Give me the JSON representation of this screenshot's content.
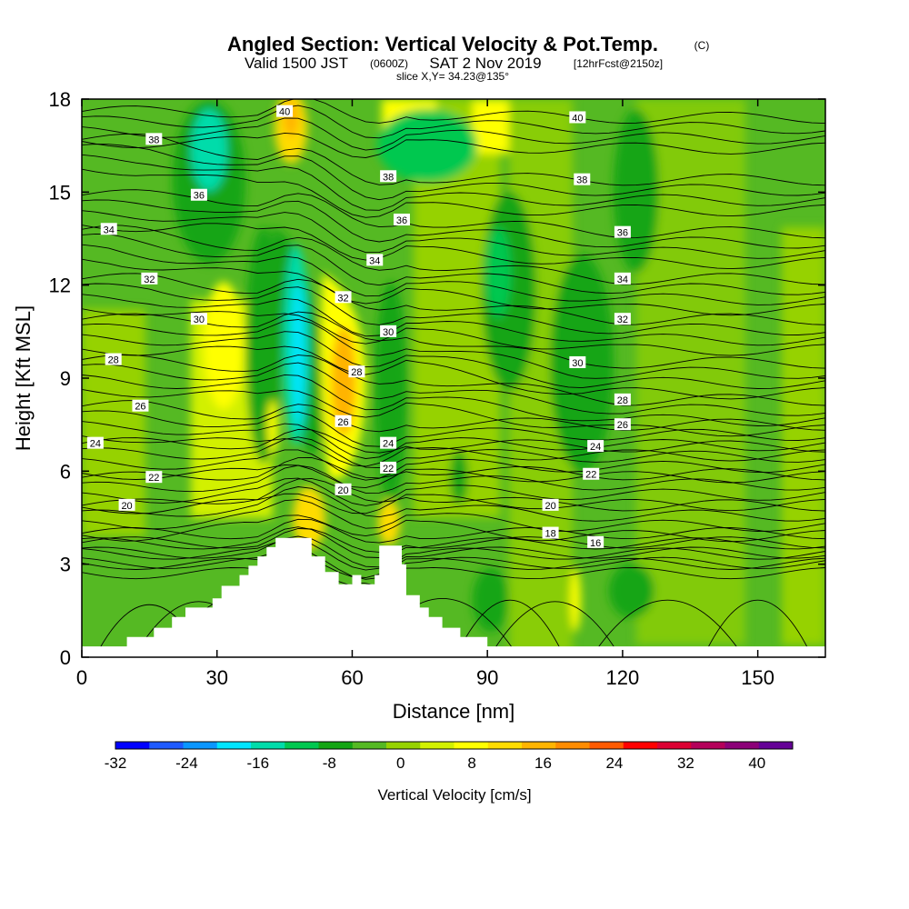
{
  "title": {
    "main": "Angled Section: Vertical Velocity & Pot.Temp.",
    "main_suffix": "(C)",
    "valid_prefix": "Valid 1500 JST",
    "valid_z": "(0600Z)",
    "valid_date": "SAT 2 Nov 2019",
    "valid_fcst": "[12hrFcst@2150z]",
    "slice": "slice X,Y= 34.23@135°"
  },
  "chart_data": {
    "type": "heatmap",
    "xlabel": "Distance [nm]",
    "ylabel": "Height [Kft MSL]",
    "xlim": [
      0,
      165
    ],
    "ylim": [
      0,
      18
    ],
    "x_ticks": [
      0,
      30,
      60,
      90,
      120,
      150
    ],
    "y_ticks": [
      0,
      3,
      6,
      9,
      12,
      15,
      18
    ],
    "field": "Vertical Velocity",
    "colorbar": {
      "title": "Vertical Velocity [cm/s]",
      "tick_labels": [
        "-32",
        "-24",
        "-16",
        "-8",
        "0",
        "8",
        "16",
        "24",
        "32",
        "40"
      ],
      "tick_values": [
        -32,
        -24,
        -16,
        -8,
        0,
        8,
        16,
        24,
        32,
        40
      ],
      "range": [
        -32,
        44
      ],
      "step": 4,
      "colors": [
        "#0000ff",
        "#1e5aff",
        "#0a96ff",
        "#00e5ff",
        "#00dcaa",
        "#00c850",
        "#14a514",
        "#55b923",
        "#96d200",
        "#d2f000",
        "#ffff00",
        "#ffdc00",
        "#ffb400",
        "#ff8c00",
        "#ff5a00",
        "#ff0000",
        "#dc0032",
        "#b4005a",
        "#8c0078",
        "#640096"
      ]
    },
    "contour_labels": [
      {
        "text": "40",
        "x": 45,
        "y": 17.6
      },
      {
        "text": "40",
        "x": 110,
        "y": 17.4
      },
      {
        "text": "38",
        "x": 16,
        "y": 16.7
      },
      {
        "text": "38",
        "x": 68,
        "y": 15.5
      },
      {
        "text": "38",
        "x": 111,
        "y": 15.4
      },
      {
        "text": "36",
        "x": 26,
        "y": 14.9
      },
      {
        "text": "36",
        "x": 71,
        "y": 14.1
      },
      {
        "text": "36",
        "x": 120,
        "y": 13.7
      },
      {
        "text": "34",
        "x": 6,
        "y": 13.8
      },
      {
        "text": "34",
        "x": 65,
        "y": 12.8
      },
      {
        "text": "34",
        "x": 120,
        "y": 12.2
      },
      {
        "text": "32",
        "x": 15,
        "y": 12.2
      },
      {
        "text": "32",
        "x": 58,
        "y": 11.6
      },
      {
        "text": "32",
        "x": 120,
        "y": 10.9
      },
      {
        "text": "30",
        "x": 26,
        "y": 10.9
      },
      {
        "text": "30",
        "x": 68,
        "y": 10.5
      },
      {
        "text": "30",
        "x": 110,
        "y": 9.5
      },
      {
        "text": "28",
        "x": 7,
        "y": 9.6
      },
      {
        "text": "28",
        "x": 61,
        "y": 9.2
      },
      {
        "text": "28",
        "x": 120,
        "y": 8.3
      },
      {
        "text": "26",
        "x": 13,
        "y": 8.1
      },
      {
        "text": "26",
        "x": 58,
        "y": 7.6
      },
      {
        "text": "26",
        "x": 120,
        "y": 7.5
      },
      {
        "text": "24",
        "x": 3,
        "y": 6.9
      },
      {
        "text": "24",
        "x": 68,
        "y": 6.9
      },
      {
        "text": "24",
        "x": 114,
        "y": 6.8
      },
      {
        "text": "22",
        "x": 16,
        "y": 5.8
      },
      {
        "text": "22",
        "x": 68,
        "y": 6.1
      },
      {
        "text": "22",
        "x": 113,
        "y": 5.9
      },
      {
        "text": "20",
        "x": 10,
        "y": 4.9
      },
      {
        "text": "20",
        "x": 58,
        "y": 5.4
      },
      {
        "text": "20",
        "x": 104,
        "y": 4.9
      },
      {
        "text": "18",
        "x": 104,
        "y": 4.0
      },
      {
        "text": "16",
        "x": 114,
        "y": 3.7
      }
    ],
    "terrain_nm": [
      [
        0,
        0.35
      ],
      [
        10,
        0.35
      ],
      [
        10,
        0.65
      ],
      [
        16,
        0.65
      ],
      [
        16,
        0.95
      ],
      [
        20,
        0.95
      ],
      [
        20,
        1.3
      ],
      [
        23,
        1.3
      ],
      [
        23,
        1.6
      ],
      [
        29,
        1.6
      ],
      [
        29,
        1.9
      ],
      [
        31,
        1.9
      ],
      [
        31,
        2.3
      ],
      [
        35,
        2.3
      ],
      [
        35,
        2.65
      ],
      [
        37,
        2.65
      ],
      [
        37,
        2.95
      ],
      [
        39,
        2.95
      ],
      [
        39,
        3.25
      ],
      [
        41,
        3.25
      ],
      [
        41,
        3.55
      ],
      [
        43,
        3.55
      ],
      [
        43,
        3.85
      ],
      [
        51,
        3.85
      ],
      [
        51,
        3.25
      ],
      [
        54,
        3.25
      ],
      [
        54,
        2.75
      ],
      [
        57,
        2.75
      ],
      [
        57,
        2.35
      ],
      [
        60,
        2.35
      ],
      [
        60,
        2.65
      ],
      [
        62,
        2.65
      ],
      [
        62,
        2.35
      ],
      [
        65,
        2.35
      ],
      [
        65,
        2.65
      ],
      [
        66,
        2.65
      ],
      [
        66,
        3.6
      ],
      [
        71,
        3.6
      ],
      [
        71,
        3.0
      ],
      [
        72,
        3.0
      ],
      [
        72,
        2.0
      ],
      [
        75,
        2.0
      ],
      [
        75,
        1.6
      ],
      [
        77,
        1.6
      ],
      [
        77,
        1.3
      ],
      [
        80,
        1.3
      ],
      [
        80,
        0.95
      ],
      [
        84,
        0.95
      ],
      [
        84,
        0.65
      ],
      [
        90,
        0.65
      ],
      [
        90,
        0.35
      ],
      [
        165,
        0.35
      ]
    ]
  }
}
